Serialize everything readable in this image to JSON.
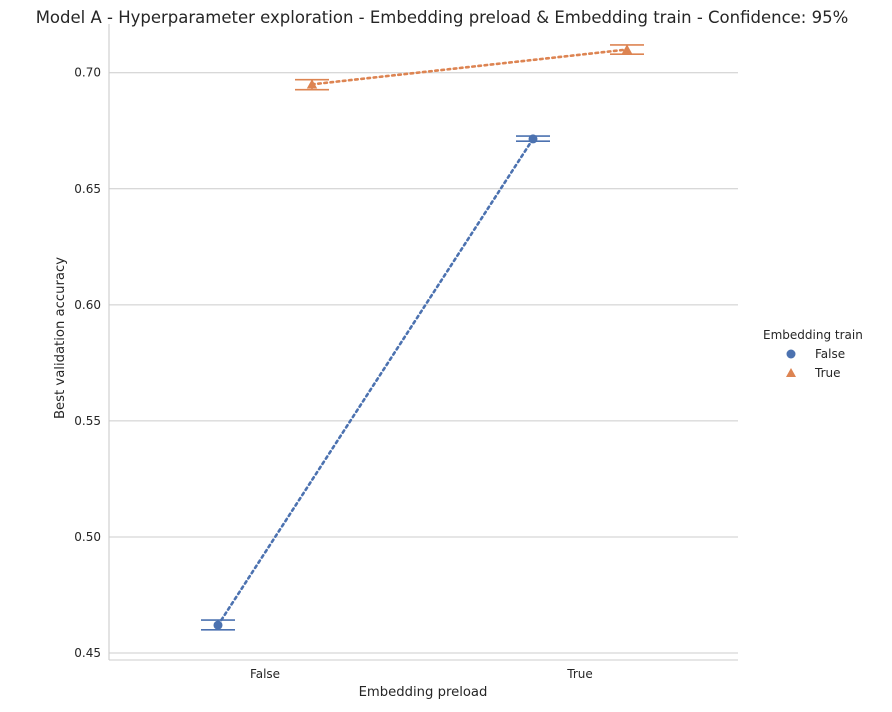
{
  "chart_data": {
    "type": "line",
    "title": "Model A - Hyperparameter exploration - Embedding preload & Embedding train - Confidence: 95%",
    "xlabel": "Embedding preload",
    "ylabel": "Best validation accuracy",
    "categories": [
      "False",
      "True"
    ],
    "ylim": [
      0.447,
      0.721
    ],
    "yticks": [
      0.45,
      0.5,
      0.55,
      0.6,
      0.65,
      0.7
    ],
    "ytick_labels": [
      "0.45",
      "0.50",
      "0.55",
      "0.60",
      "0.65",
      "0.70"
    ],
    "grid": true,
    "legend": {
      "title": "Embedding train",
      "placement": "right"
    },
    "series": [
      {
        "name": "False",
        "marker": "circle",
        "color": "#4c72b0",
        "values": [
          0.462,
          0.6715
        ],
        "ci_low": [
          0.46,
          0.6705
        ],
        "ci_high": [
          0.4642,
          0.6727
        ]
      },
      {
        "name": "True",
        "marker": "triangle",
        "color": "#dd8452",
        "values": [
          0.695,
          0.71
        ],
        "ci_low": [
          0.6927,
          0.708
        ],
        "ci_high": [
          0.697,
          0.712
        ]
      }
    ]
  }
}
